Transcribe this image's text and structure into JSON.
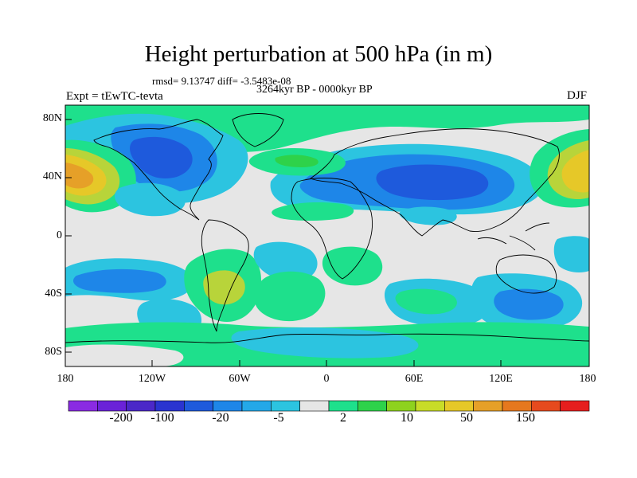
{
  "title": "Height perturbation at 500 hPa (in m)",
  "stats_text": "rmsd= 9.13747 diff= -3.5483e-08",
  "period": "3264kyr BP - 0000kyr BP",
  "experiment": "Expt = tEwTC-tevta",
  "season": "DJF",
  "lat_ticks": [
    "80N",
    "40N",
    "0",
    "40S",
    "80S"
  ],
  "lon_ticks": [
    "180",
    "120W",
    "60W",
    "0",
    "60E",
    "120E",
    "180"
  ],
  "colorbar": {
    "colors": [
      "#8a2be2",
      "#6a22d8",
      "#4b28c8",
      "#2a34d0",
      "#1e5adc",
      "#1e86e8",
      "#24a8e8",
      "#2cc4e0",
      "#e6e6e6",
      "#1ee08c",
      "#2ed24a",
      "#8ed21e",
      "#c8dc28",
      "#e6c828",
      "#e6a028",
      "#e6781e",
      "#e64a1e",
      "#e61e1e"
    ],
    "labels": [
      "-200",
      "-100",
      "-20",
      "-5",
      "2",
      "10",
      "50",
      "150"
    ]
  },
  "field_colors": {
    "neutral": "#e6e6e6",
    "dark_blue": "#1e5adc",
    "blue": "#1e86e8",
    "light_blue": "#2cc4e0",
    "green": "#1ee08c",
    "mid_green": "#2ed24a",
    "yellow_green": "#b8d43a",
    "yellow": "#e6c828",
    "orange": "#e6a028",
    "coast": "#000000"
  }
}
